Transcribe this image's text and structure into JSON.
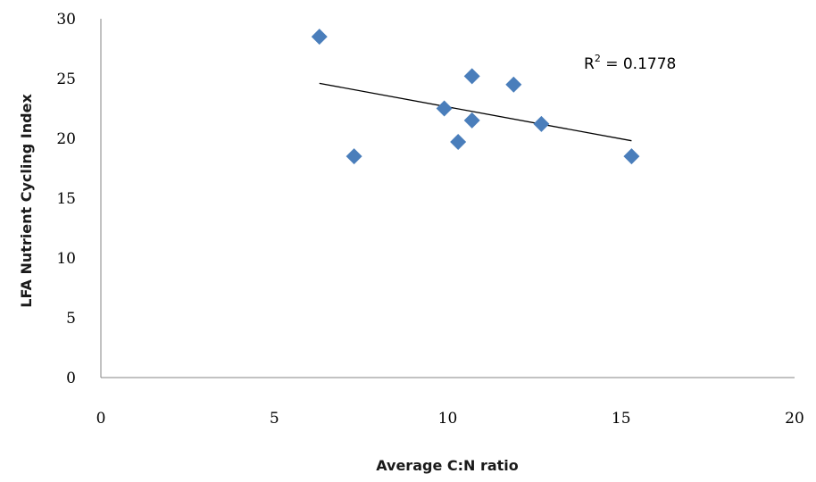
{
  "chart_data": {
    "type": "scatter",
    "title": "",
    "xlabel": "Average C:N ratio",
    "ylabel": "LFA Nutrient Cycling Index",
    "xlim": [
      0,
      20
    ],
    "ylim": [
      0,
      30
    ],
    "xticks": [
      0,
      5,
      10,
      15,
      20
    ],
    "yticks": [
      0,
      5,
      10,
      15,
      20,
      25,
      30
    ],
    "grid": false,
    "marker_color": "#4A7EBB",
    "trendline_color": "#000000",
    "series": [
      {
        "x": [
          6.3,
          7.3,
          9.9,
          10.3,
          10.7,
          10.7,
          11.9,
          12.7,
          15.3
        ],
        "y": [
          28.5,
          18.5,
          22.5,
          19.7,
          21.5,
          25.2,
          24.5,
          21.2,
          18.5
        ]
      }
    ],
    "trendline": {
      "x": [
        6.3,
        15.3
      ],
      "y": [
        24.6,
        19.8
      ]
    },
    "annotation": {
      "base": "R",
      "sup": "2",
      "rest": " = 0.1778"
    }
  }
}
